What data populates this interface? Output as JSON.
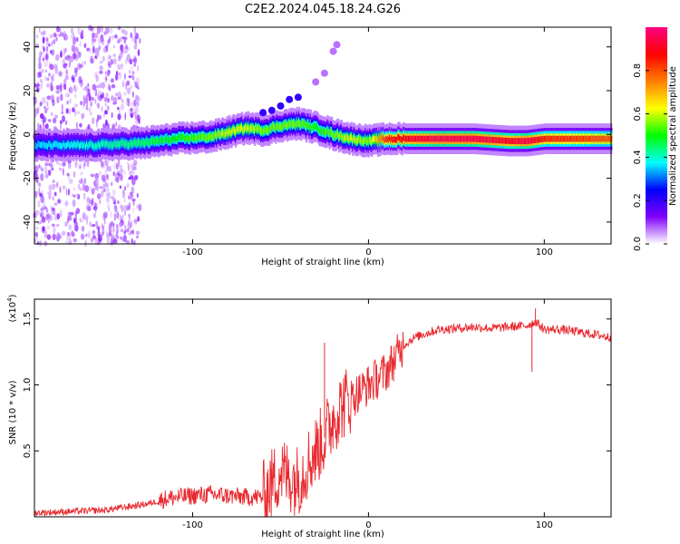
{
  "chart_data": [
    {
      "type": "heatmap",
      "title": "C2E2.2024.045.18.24.G26",
      "xlabel": "Height of straight line (km)",
      "ylabel": "Frequency (Hz)",
      "xlim": [
        -190,
        138
      ],
      "ylim": [
        -50,
        49
      ],
      "xticks": [
        -100,
        0,
        100
      ],
      "yticks": [
        -40,
        -20,
        0,
        20,
        40
      ],
      "colorbar": {
        "label": "Normalized spectral amplitude",
        "range": [
          0,
          1
        ],
        "ticks": [
          "0.0",
          "0.2",
          "0.4",
          "0.6",
          "0.8"
        ],
        "colormap": [
          "#ffffff",
          "#8000ff",
          "#0000ff",
          "#00ffff",
          "#00ff00",
          "#ffff00",
          "#ff8000",
          "#ff0000",
          "#ff0080"
        ]
      },
      "ridge": {
        "x": [
          -190,
          -160,
          -130,
          -110,
          -90,
          -80,
          -70,
          -60,
          -50,
          -40,
          -30,
          -20,
          -10,
          0,
          10,
          20,
          40,
          60,
          80,
          90,
          100,
          138
        ],
        "freq": [
          -5,
          -5,
          -4,
          -2,
          -1,
          1,
          3,
          2,
          4,
          5,
          3,
          0,
          -2,
          -3,
          -2,
          -2,
          -2,
          -2,
          -3,
          -3,
          -2,
          -2
        ],
        "amplitude": [
          0.35,
          0.4,
          0.45,
          0.5,
          0.55,
          0.6,
          0.6,
          0.55,
          0.55,
          0.55,
          0.5,
          0.55,
          0.6,
          0.55,
          0.85,
          0.9,
          0.95,
          0.95,
          0.9,
          0.95,
          0.85,
          0.8
        ]
      },
      "noise_region": [
        -190,
        -130
      ]
    },
    {
      "type": "line",
      "xlabel": "Height of straight line (km)",
      "ylabel": "SNR (10 * v/v)",
      "ylabel_scale": "(x10",
      "ylabel_exponent": "4",
      "xlim": [
        -190,
        138
      ],
      "ylim": [
        0,
        1.65
      ],
      "xticks": [
        -100,
        0,
        100
      ],
      "yticks": [
        "0.5",
        "1.0",
        "1.5"
      ],
      "color": "#e8282e",
      "series": [
        {
          "name": "SNR",
          "x": [
            -190,
            -170,
            -150,
            -135,
            -125,
            -115,
            -100,
            -90,
            -80,
            -70,
            -60,
            -55,
            -50,
            -45,
            -40,
            -35,
            -30,
            -25,
            -20,
            -15,
            -10,
            -5,
            0,
            5,
            10,
            15,
            20,
            25,
            30,
            40,
            50,
            60,
            70,
            80,
            90,
            95,
            100,
            110,
            120,
            130,
            138
          ],
          "y": [
            0.03,
            0.04,
            0.05,
            0.08,
            0.1,
            0.14,
            0.16,
            0.17,
            0.16,
            0.15,
            0.15,
            0.25,
            0.35,
            0.3,
            0.28,
            0.4,
            0.5,
            0.6,
            0.75,
            0.85,
            0.9,
            0.95,
            1.0,
            1.05,
            1.1,
            1.2,
            1.3,
            1.35,
            1.38,
            1.42,
            1.43,
            1.44,
            1.43,
            1.44,
            1.45,
            1.48,
            1.42,
            1.42,
            1.4,
            1.38,
            1.36
          ]
        }
      ],
      "spikes": [
        {
          "x": -25,
          "y": 1.32
        },
        {
          "x": 95,
          "y": 1.58
        },
        {
          "x": 93,
          "y": 1.1
        }
      ]
    }
  ]
}
